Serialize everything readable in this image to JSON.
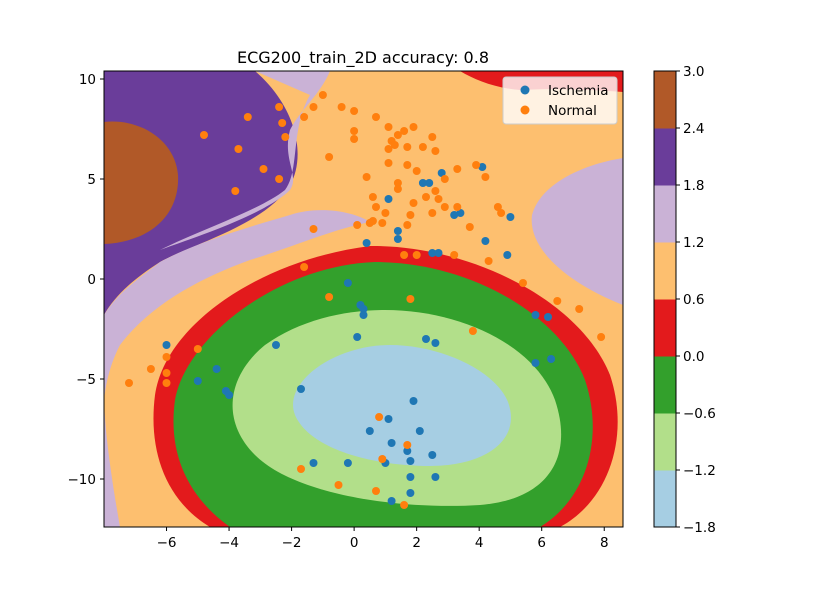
{
  "chart_data": {
    "type": "scatter",
    "title": "ECG200_train_2D  accuracy: 0.8",
    "xlabel": "",
    "ylabel": "",
    "xlim": [
      -8.0,
      8.6
    ],
    "ylim": [
      -12.4,
      10.4
    ],
    "x_ticks": [
      -6,
      -4,
      -2,
      0,
      2,
      4,
      6,
      8
    ],
    "y_ticks": [
      -10,
      -5,
      0,
      5,
      10
    ],
    "x_tick_labels": [
      "−6",
      "−4",
      "−2",
      "0",
      "2",
      "4",
      "6",
      "8"
    ],
    "y_tick_labels": [
      "−10",
      "−5",
      "0",
      "5",
      "10"
    ],
    "legend": {
      "position": "top-right",
      "entries": [
        "Ischemia",
        "Normal"
      ]
    },
    "colorbar": {
      "levels": [
        -1.8,
        -1.2,
        -0.6,
        0.0,
        0.6,
        1.2,
        1.8,
        2.4,
        3.0
      ],
      "labels": [
        "−1.8",
        "−1.2",
        "−0.6",
        "0.0",
        "0.6",
        "1.2",
        "1.8",
        "2.4",
        "3.0"
      ],
      "colors": [
        "#a6cee3",
        "#b2df8a",
        "#33a02c",
        "#e31a1c",
        "#fdbf6f",
        "#cab2d6",
        "#6a3d9a",
        "#b15928"
      ]
    },
    "series": [
      {
        "name": "Ischemia",
        "color": "#1f77b4",
        "points": [
          [
            4.1,
            5.6
          ],
          [
            2.8,
            5.3
          ],
          [
            2.4,
            4.8
          ],
          [
            2.2,
            4.8
          ],
          [
            1.1,
            4.0
          ],
          [
            3.4,
            3.3
          ],
          [
            3.2,
            3.2
          ],
          [
            5.0,
            3.1
          ],
          [
            1.4,
            2.4
          ],
          [
            1.4,
            2.0
          ],
          [
            0.4,
            1.8
          ],
          [
            4.2,
            1.9
          ],
          [
            2.5,
            1.3
          ],
          [
            2.7,
            1.3
          ],
          [
            4.9,
            1.2
          ],
          [
            -0.2,
            -0.2
          ],
          [
            0.2,
            -1.3
          ],
          [
            0.3,
            -1.5
          ],
          [
            0.3,
            -1.8
          ],
          [
            5.8,
            -1.8
          ],
          [
            6.2,
            -1.9
          ],
          [
            0.1,
            -2.9
          ],
          [
            2.3,
            -3.0
          ],
          [
            2.6,
            -3.2
          ],
          [
            -6.0,
            -3.3
          ],
          [
            -2.5,
            -3.3
          ],
          [
            6.3,
            -4.0
          ],
          [
            5.8,
            -4.2
          ],
          [
            -4.4,
            -4.5
          ],
          [
            -5.0,
            -5.1
          ],
          [
            -4.1,
            -5.6
          ],
          [
            -4.0,
            -5.8
          ],
          [
            -1.7,
            -5.5
          ],
          [
            1.9,
            -6.1
          ],
          [
            1.1,
            -7.0
          ],
          [
            0.5,
            -7.6
          ],
          [
            2.1,
            -7.6
          ],
          [
            1.2,
            -8.2
          ],
          [
            1.7,
            -8.6
          ],
          [
            2.5,
            -8.8
          ],
          [
            -1.3,
            -9.2
          ],
          [
            -0.2,
            -9.2
          ],
          [
            1.0,
            -9.2
          ],
          [
            1.8,
            -9.1
          ],
          [
            1.8,
            -9.9
          ],
          [
            2.6,
            -9.9
          ],
          [
            1.8,
            -10.7
          ],
          [
            1.2,
            -11.1
          ]
        ]
      },
      {
        "name": "Normal",
        "color": "#ff7f0e",
        "points": [
          [
            -1.0,
            9.2
          ],
          [
            -1.3,
            8.6
          ],
          [
            -2.4,
            8.6
          ],
          [
            -1.6,
            8.1
          ],
          [
            -3.4,
            8.1
          ],
          [
            -2.3,
            7.8
          ],
          [
            -4.8,
            7.2
          ],
          [
            -2.2,
            7.1
          ],
          [
            -3.7,
            6.5
          ],
          [
            -2.9,
            5.5
          ],
          [
            -3.8,
            4.4
          ],
          [
            -2.4,
            5.0
          ],
          [
            -0.4,
            8.6
          ],
          [
            0.0,
            8.4
          ],
          [
            0.7,
            8.1
          ],
          [
            1.1,
            7.6
          ],
          [
            1.9,
            7.6
          ],
          [
            0.0,
            7.4
          ],
          [
            1.4,
            7.2
          ],
          [
            1.6,
            7.4
          ],
          [
            2.5,
            7.1
          ],
          [
            1.2,
            6.9
          ],
          [
            0.0,
            7.0
          ],
          [
            1.3,
            6.7
          ],
          [
            1.7,
            6.6
          ],
          [
            1.1,
            6.5
          ],
          [
            2.2,
            6.6
          ],
          [
            -0.8,
            6.1
          ],
          [
            2.6,
            6.4
          ],
          [
            1.1,
            5.8
          ],
          [
            1.7,
            5.7
          ],
          [
            2.0,
            5.4
          ],
          [
            3.3,
            5.5
          ],
          [
            3.9,
            5.7
          ],
          [
            4.2,
            5.1
          ],
          [
            0.4,
            5.1
          ],
          [
            2.9,
            5.0
          ],
          [
            1.4,
            4.8
          ],
          [
            1.4,
            4.5
          ],
          [
            2.6,
            4.4
          ],
          [
            0.6,
            4.1
          ],
          [
            2.3,
            4.1
          ],
          [
            2.7,
            4.0
          ],
          [
            1.9,
            3.8
          ],
          [
            0.7,
            3.6
          ],
          [
            2.9,
            3.6
          ],
          [
            3.3,
            3.6
          ],
          [
            1.0,
            3.3
          ],
          [
            1.8,
            3.2
          ],
          [
            2.5,
            3.3
          ],
          [
            4.6,
            3.6
          ],
          [
            4.7,
            3.3
          ],
          [
            -1.3,
            2.5
          ],
          [
            0.1,
            2.7
          ],
          [
            0.5,
            2.8
          ],
          [
            0.6,
            2.9
          ],
          [
            0.9,
            2.8
          ],
          [
            1.7,
            2.7
          ],
          [
            3.7,
            2.6
          ],
          [
            1.6,
            1.2
          ],
          [
            2.0,
            1.2
          ],
          [
            3.2,
            1.2
          ],
          [
            4.3,
            0.9
          ],
          [
            -1.6,
            0.6
          ],
          [
            5.4,
            -0.2
          ],
          [
            -0.8,
            -0.9
          ],
          [
            1.8,
            -1.0
          ],
          [
            6.5,
            -1.1
          ],
          [
            7.2,
            -1.5
          ],
          [
            3.8,
            -2.6
          ],
          [
            7.9,
            -2.9
          ],
          [
            -5.0,
            -3.5
          ],
          [
            -6.0,
            -3.9
          ],
          [
            -6.5,
            -4.5
          ],
          [
            -6.0,
            -4.7
          ],
          [
            -7.2,
            -5.2
          ],
          [
            -6.0,
            -5.2
          ],
          [
            0.8,
            -6.9
          ],
          [
            1.7,
            -8.3
          ],
          [
            0.9,
            -9.0
          ],
          [
            -1.7,
            -9.5
          ],
          [
            -0.5,
            -10.3
          ],
          [
            0.7,
            -10.6
          ],
          [
            1.6,
            -11.3
          ]
        ]
      }
    ]
  }
}
